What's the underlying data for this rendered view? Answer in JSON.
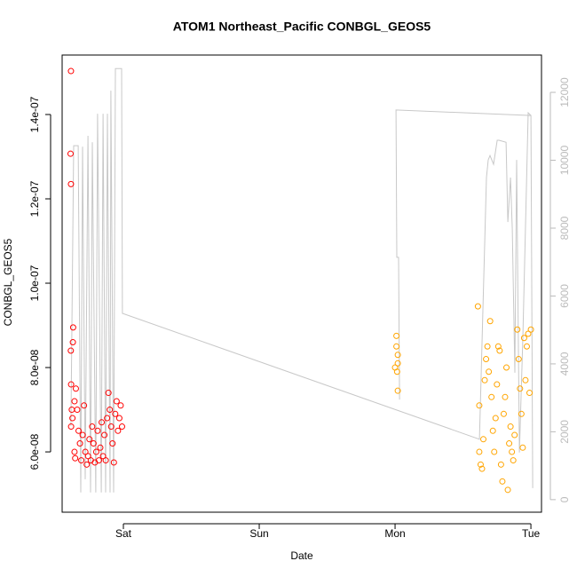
{
  "chart_data": {
    "type": "scatter",
    "title": "ATOM1 Northeast_Pacific CONBGL_GEOS5",
    "xlabel": "Date",
    "ylabel": "CONBGL_GEOS5",
    "xlim": [
      -0.451,
      3.078
    ],
    "xticks": [
      {
        "value": 0,
        "label": "Sat"
      },
      {
        "value": 1,
        "label": "Sun"
      },
      {
        "value": 2,
        "label": "Mon"
      },
      {
        "value": 3,
        "label": "Tue"
      }
    ],
    "ylim": [
      4.57e-08,
      1.541e-07
    ],
    "yticks": [
      {
        "value": 6e-08,
        "label": "6.0e-08"
      },
      {
        "value": 8e-08,
        "label": "8.0e-08"
      },
      {
        "value": 1e-07,
        "label": "1.0e-07"
      },
      {
        "value": 1.2e-07,
        "label": "1.2e-07"
      },
      {
        "value": 1.4e-07,
        "label": "1.4e-07"
      }
    ],
    "y2lim": [
      -370,
      13100
    ],
    "y2ticks": [
      0,
      2000,
      4000,
      6000,
      8000,
      10000,
      12000
    ],
    "series": [
      {
        "type": "line",
        "axis": "y2",
        "color": "#c8c8c8",
        "x": [
          -0.386,
          -0.366,
          -0.333,
          -0.314,
          -0.301,
          -0.281,
          -0.261,
          -0.242,
          -0.229,
          -0.203,
          -0.19,
          -0.163,
          -0.15,
          -0.131,
          -0.118,
          -0.098,
          -0.092,
          -0.072,
          -0.059,
          -0.013,
          -0.007,
          2.621,
          2.673,
          2.686,
          2.699,
          2.725,
          2.752,
          2.765,
          2.817,
          2.83,
          2.85,
          2.863,
          2.882,
          2.895,
          2.915,
          2.941,
          2.961,
          2.98,
          3.0,
          3.013,
          3.0,
          2.007,
          2.013,
          2.026,
          2.033
        ],
        "values": [
          2170,
          10430,
          10430,
          210,
          10400,
          600,
          10720,
          210,
          10530,
          210,
          11370,
          210,
          11370,
          210,
          11370,
          210,
          12050,
          210,
          12700,
          12700,
          5490,
          1780,
          9490,
          10010,
          10140,
          9880,
          10590,
          10590,
          10530,
          8180,
          9490,
          7970,
          3740,
          10010,
          1390,
          4780,
          8180,
          11400,
          11320,
          340,
          11320,
          11480,
          7140,
          7140,
          2950
        ]
      },
      {
        "color": "#ff0000",
        "x": [
          -0.386,
          -0.389,
          -0.386,
          -0.387,
          -0.37,
          -0.372,
          -0.385,
          -0.38,
          -0.385,
          -0.375,
          -0.36,
          -0.35,
          -0.36,
          -0.355,
          -0.34,
          -0.33,
          -0.32,
          -0.31,
          -0.3,
          -0.29,
          -0.28,
          -0.27,
          -0.26,
          -0.25,
          -0.24,
          -0.23,
          -0.22,
          -0.21,
          -0.2,
          -0.19,
          -0.18,
          -0.17,
          -0.16,
          -0.15,
          -0.14,
          -0.13,
          -0.12,
          -0.11,
          -0.1,
          -0.09,
          -0.08,
          -0.07,
          -0.06,
          -0.05,
          -0.04,
          -0.03,
          -0.02,
          -0.01
        ],
        "values": [
          1.503e-07,
          1.307e-07,
          1.235e-07,
          8.4e-08,
          8.95e-08,
          8.6e-08,
          7.6e-08,
          7e-08,
          6.6e-08,
          6.8e-08,
          7.2e-08,
          7.5e-08,
          6e-08,
          5.85e-08,
          7e-08,
          6.5e-08,
          6.2e-08,
          5.8e-08,
          6.4e-08,
          7.1e-08,
          6e-08,
          5.7e-08,
          5.9e-08,
          6.3e-08,
          5.8e-08,
          6.6e-08,
          6.2e-08,
          5.75e-08,
          6e-08,
          6.5e-08,
          5.8e-08,
          6.1e-08,
          6.7e-08,
          5.9e-08,
          6.4e-08,
          5.8e-08,
          6.8e-08,
          7.4e-08,
          7e-08,
          6.6e-08,
          6.2e-08,
          5.75e-08,
          6.9e-08,
          7.2e-08,
          6.5e-08,
          6.8e-08,
          7.1e-08,
          6.6e-08
        ]
      },
      {
        "color": "#ffa500",
        "x": [
          2.01,
          2.01,
          2.02,
          2.02,
          2.015,
          2.02,
          2.0,
          2.61,
          2.62,
          2.63,
          2.64,
          2.62,
          2.65,
          2.66,
          2.67,
          2.68,
          2.69,
          2.7,
          2.71,
          2.72,
          2.73,
          2.74,
          2.75,
          2.76,
          2.77,
          2.78,
          2.79,
          2.8,
          2.81,
          2.82,
          2.83,
          2.84,
          2.85,
          2.86,
          2.87,
          2.88,
          2.9,
          2.91,
          2.92,
          2.93,
          2.94,
          2.95,
          2.96,
          2.97,
          2.98,
          2.99,
          3.0
        ],
        "values": [
          8.75e-08,
          8.5e-08,
          8.3e-08,
          8.1e-08,
          7.9e-08,
          7.45e-08,
          8e-08,
          9.45e-08,
          6e-08,
          5.7e-08,
          5.6e-08,
          7.1e-08,
          6.3e-08,
          7.7e-08,
          8.2e-08,
          8.5e-08,
          7.9e-08,
          9.1e-08,
          7.3e-08,
          6.5e-08,
          6e-08,
          6.8e-08,
          7.6e-08,
          8.5e-08,
          8.4e-08,
          5.7e-08,
          5.3e-08,
          6.9e-08,
          7.3e-08,
          8e-08,
          5.1e-08,
          6.2e-08,
          6.6e-08,
          6e-08,
          5.8e-08,
          6.4e-08,
          8.9e-08,
          8.2e-08,
          7.5e-08,
          6.9e-08,
          6.1e-08,
          8.7e-08,
          7.7e-08,
          8.5e-08,
          8.8e-08,
          7.4e-08,
          8.9e-08
        ]
      }
    ]
  }
}
